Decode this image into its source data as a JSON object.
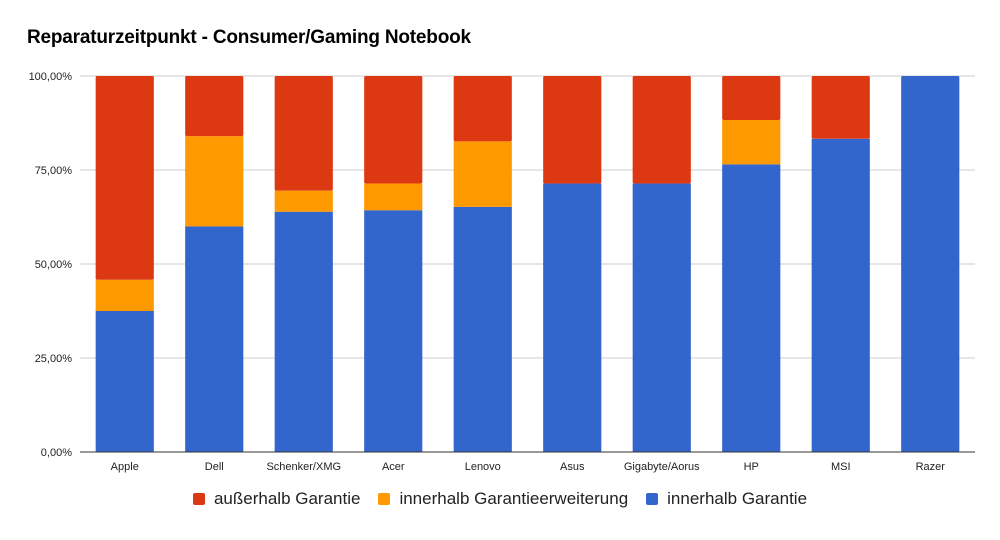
{
  "chart_data": {
    "type": "bar",
    "stacked": true,
    "title": "Reparaturzeitpunkt - Consumer/Gaming Notebook",
    "xlabel": "",
    "ylabel": "",
    "ylim": [
      0,
      100
    ],
    "yticks": [
      0,
      25,
      50,
      75,
      100
    ],
    "ytick_labels": [
      "0,00%",
      "25,00%",
      "50,00%",
      "75,00%",
      "100,00%"
    ],
    "grid": true,
    "legend_position": "bottom",
    "categories": [
      "Apple",
      "Dell",
      "Schenker/XMG",
      "Acer",
      "Lenovo",
      "Asus",
      "Gigabyte/Aorus",
      "HP",
      "MSI",
      "Razer"
    ],
    "series": [
      {
        "name": "innerhalb Garantie",
        "color": "#3366cc",
        "values": [
          37.5,
          60.0,
          63.9,
          64.3,
          65.2,
          71.4,
          71.4,
          76.5,
          83.3,
          100.0
        ]
      },
      {
        "name": "innerhalb Garantieerweiterung",
        "color": "#ff9900",
        "values": [
          8.3,
          24.0,
          5.6,
          7.1,
          17.4,
          0.0,
          0.0,
          11.8,
          0.0,
          0.0
        ]
      },
      {
        "name": "außerhalb Garantie",
        "color": "#dc3912",
        "values": [
          54.2,
          16.0,
          30.5,
          28.6,
          17.4,
          28.6,
          28.6,
          11.7,
          16.7,
          0.0
        ]
      }
    ],
    "legend_order": [
      "außerhalb Garantie",
      "innerhalb Garantieerweiterung",
      "innerhalb Garantie"
    ]
  },
  "legend": [
    {
      "label": "außerhalb Garantie",
      "color": "#dc3912"
    },
    {
      "label": "innerhalb Garantieerweiterung",
      "color": "#ff9900"
    },
    {
      "label": "innerhalb Garantie",
      "color": "#3366cc"
    }
  ]
}
